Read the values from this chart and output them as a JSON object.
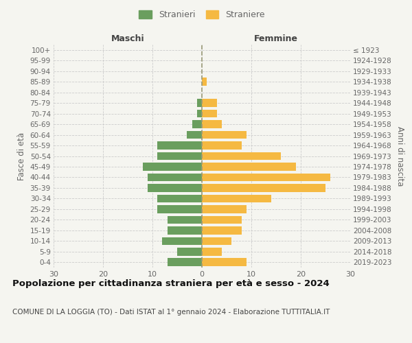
{
  "age_groups": [
    "0-4",
    "5-9",
    "10-14",
    "15-19",
    "20-24",
    "25-29",
    "30-34",
    "35-39",
    "40-44",
    "45-49",
    "50-54",
    "55-59",
    "60-64",
    "65-69",
    "70-74",
    "75-79",
    "80-84",
    "85-89",
    "90-94",
    "95-99",
    "100+"
  ],
  "birth_years": [
    "2019-2023",
    "2014-2018",
    "2009-2013",
    "2004-2008",
    "1999-2003",
    "1994-1998",
    "1989-1993",
    "1984-1988",
    "1979-1983",
    "1974-1978",
    "1969-1973",
    "1964-1968",
    "1959-1963",
    "1954-1958",
    "1949-1953",
    "1944-1948",
    "1939-1943",
    "1934-1938",
    "1929-1933",
    "1924-1928",
    "≤ 1923"
  ],
  "males": [
    7,
    5,
    8,
    7,
    7,
    9,
    9,
    11,
    11,
    12,
    9,
    9,
    3,
    2,
    1,
    1,
    0,
    0,
    0,
    0,
    0
  ],
  "females": [
    9,
    4,
    6,
    8,
    8,
    9,
    14,
    25,
    26,
    19,
    16,
    8,
    9,
    4,
    3,
    3,
    0,
    1,
    0,
    0,
    0
  ],
  "male_color": "#6a9e5e",
  "female_color": "#f5b942",
  "xlim": 30,
  "title": "Popolazione per cittadinanza straniera per età e sesso - 2024",
  "subtitle": "COMUNE DI LA LOGGIA (TO) - Dati ISTAT al 1° gennaio 2024 - Elaborazione TUTTITALIA.IT",
  "xlabel_left": "Maschi",
  "xlabel_right": "Femmine",
  "ylabel_left": "Fasce di età",
  "ylabel_right": "Anni di nascita",
  "legend_male": "Stranieri",
  "legend_female": "Straniere",
  "bg_color": "#f5f5f0",
  "grid_color": "#cccccc",
  "center_line_color": "#999977",
  "text_color": "#666666",
  "title_color": "#111111",
  "subtitle_color": "#444444"
}
